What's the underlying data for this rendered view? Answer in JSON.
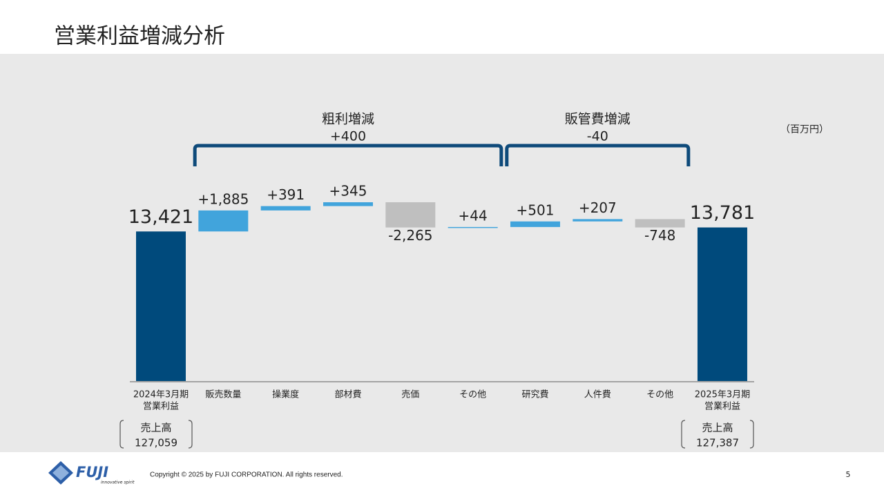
{
  "header": {
    "title": "営業利益増減分析"
  },
  "chart_data": {
    "type": "waterfall",
    "unit": "（百万円）",
    "categories": [
      [
        "2024年3月期",
        "営業利益"
      ],
      [
        "販売数量"
      ],
      [
        "操業度"
      ],
      [
        "部材費"
      ],
      [
        "売価"
      ],
      [
        "その他"
      ],
      [
        "研究費"
      ],
      [
        "人件費"
      ],
      [
        "その他"
      ],
      [
        "2025年3月期",
        "営業利益"
      ]
    ],
    "values": [
      13421,
      1885,
      391,
      345,
      -2265,
      44,
      501,
      207,
      -748,
      13781
    ],
    "value_labels": [
      "13,421",
      "+1,885",
      "+391",
      "+345",
      "-2,265",
      "+44",
      "+501",
      "+207",
      "-748",
      "13,781"
    ],
    "colors": {
      "total": "#004a7c",
      "increase": "#41a4dc",
      "decrease": "#bfbfbf"
    },
    "groups": [
      {
        "title": "粗利増減",
        "value": 400,
        "value_label": "+400",
        "start": 1,
        "end": 5
      },
      {
        "title": "販管費増減",
        "value": -40,
        "value_label": "-40",
        "start": 6,
        "end": 8
      }
    ],
    "bracket_color": "#0e4a7a"
  },
  "sales": [
    {
      "label": "売上高",
      "amount": "127,059"
    },
    {
      "label": "売上高",
      "amount": "127,387"
    }
  ],
  "footer": {
    "logo": "FUJI",
    "tagline": "innovative spirit",
    "copyright": "Copyright © 2025 by FUJI CORPORATION. All rights reserved.",
    "page": "5"
  }
}
